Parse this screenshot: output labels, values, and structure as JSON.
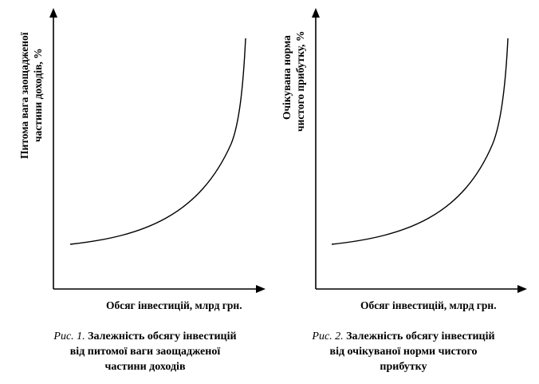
{
  "figures": [
    {
      "ylabel_line1": "Питома вага заощадженої",
      "ylabel_line2": "частини доходів, %",
      "xlabel": "Обсяг інвестицій, млрд грн.",
      "caption_prefix": "Рис. 1.",
      "caption_line1": "Залежність обсягу інвестицій",
      "caption_line2": "від питомої ваги заощадженої",
      "caption_line3": "частини доходів"
    },
    {
      "ylabel_line1": "Очікувана норма",
      "ylabel_line2": "чистого прибутку, %",
      "xlabel": "Обсяг інвестицій, млрд грн.",
      "caption_prefix": "Рис. 2.",
      "caption_line1": "Залежність обсягу інвестицій",
      "caption_line2": "від очікуваної норми чистого",
      "caption_line3": "прибутку"
    }
  ]
}
